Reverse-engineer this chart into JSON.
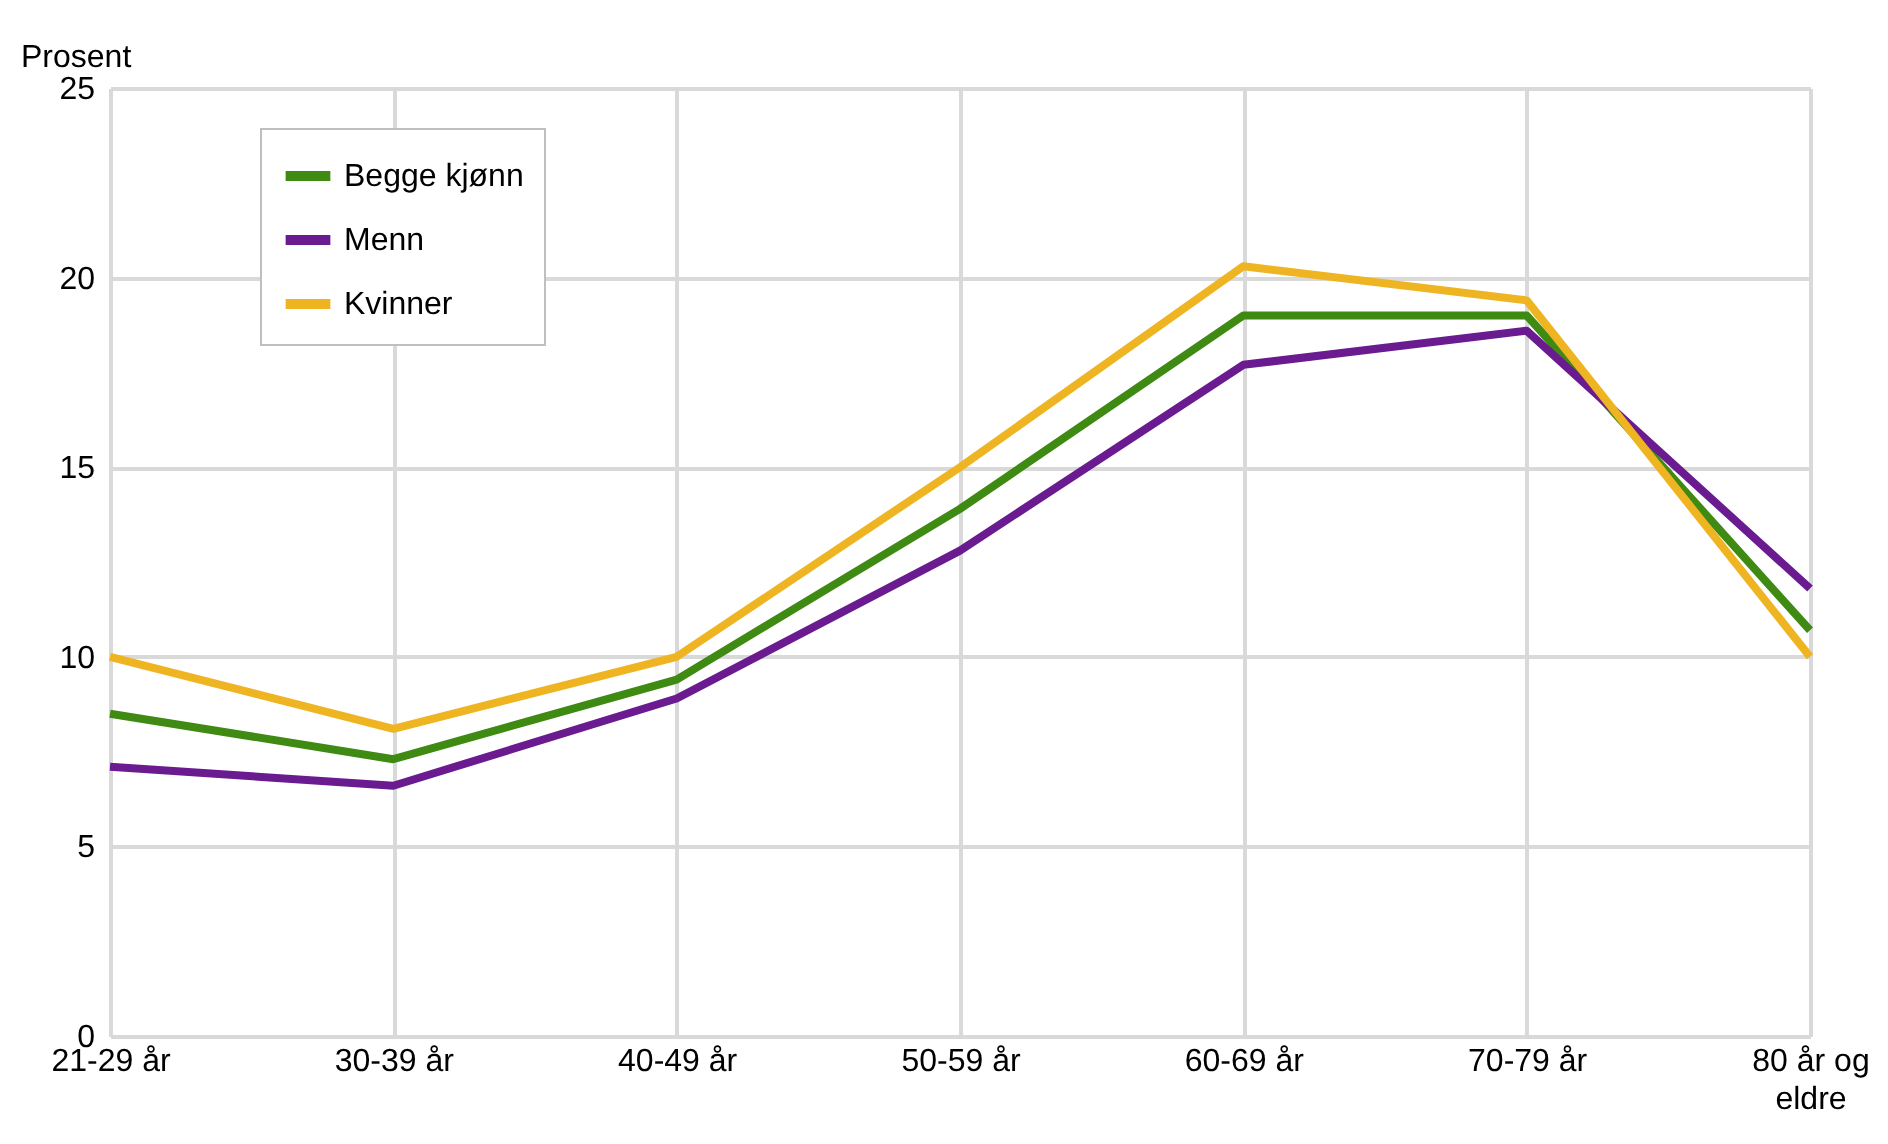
{
  "chart_data": {
    "type": "line",
    "ylabel": "Prosent",
    "categories": [
      "21-29 år",
      "30-39 år",
      "40-49 år",
      "50-59 år",
      "60-69 år",
      "70-79 år",
      "80 år og eldre"
    ],
    "series": [
      {
        "name": "Begge kjønn",
        "color": "#3e8a12",
        "values": [
          8.5,
          7.3,
          9.4,
          13.9,
          19.0,
          19.0,
          10.7
        ]
      },
      {
        "name": "Menn",
        "color": "#6a1b8f",
        "values": [
          7.1,
          6.6,
          8.9,
          12.8,
          17.7,
          18.6,
          11.8
        ]
      },
      {
        "name": "Kvinner",
        "color": "#eeb422",
        "values": [
          10.0,
          8.1,
          10.0,
          15.0,
          20.3,
          19.4,
          10.0
        ]
      }
    ],
    "ylim": [
      0,
      25
    ],
    "yticks": [
      0,
      5,
      10,
      15,
      20,
      25
    ],
    "grid": true,
    "legend": "top left",
    "marker": "none",
    "line_style": "solid"
  }
}
